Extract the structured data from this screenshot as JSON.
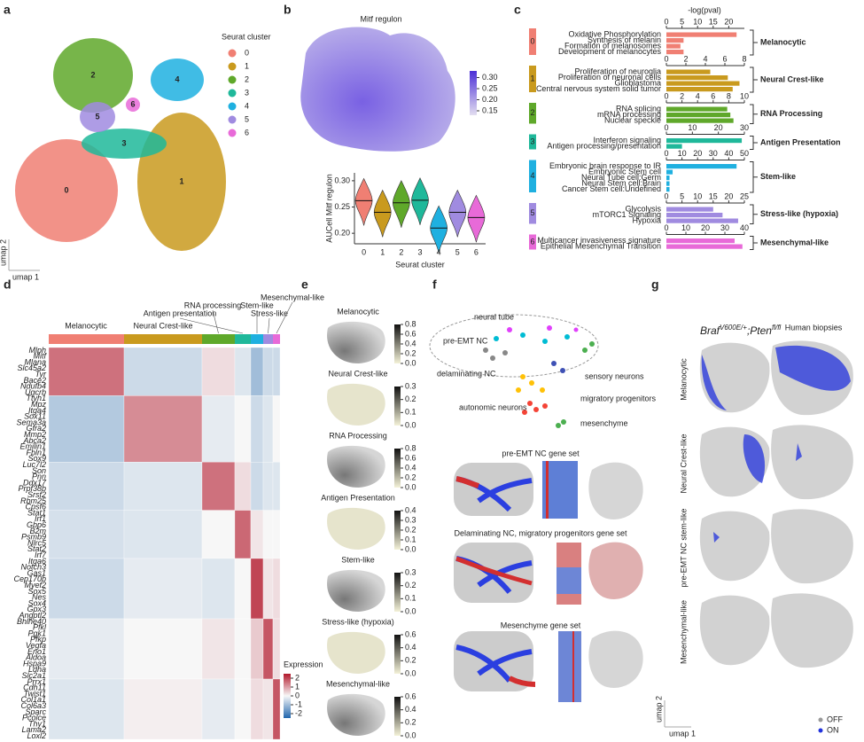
{
  "panel_labels": [
    "a",
    "b",
    "c",
    "d",
    "e",
    "f",
    "g"
  ],
  "panel_a": {
    "legend_title": "Seurat cluster",
    "clusters": [
      "0",
      "1",
      "2",
      "3",
      "4",
      "5",
      "6"
    ],
    "colors": [
      "#f07f73",
      "#c99a1e",
      "#5fa82a",
      "#1fb89a",
      "#1fb0e0",
      "#a08be0",
      "#e86ad8"
    ],
    "xlabel": "umap 1",
    "ylabel": "umap 2"
  },
  "panel_b": {
    "title": "Mitf regulon",
    "colorbar_lim": [
      0.13,
      0.33
    ],
    "colorbar_ticks": [
      0.15,
      {
        "value": 0.2,
        "label": "0.20"
      },
      0.25,
      {
        "value": 0.3,
        "label": "0.30"
      }
    ],
    "violin": {
      "type": "violin",
      "ylabel": "AUCell Mitf regulon",
      "xlabel": "Seurat cluster",
      "categories": [
        "0",
        "1",
        "2",
        "3",
        "4",
        "5",
        "6"
      ],
      "medians": [
        0.262,
        0.24,
        0.258,
        0.263,
        0.21,
        0.24,
        0.23
      ],
      "ylim": [
        0.18,
        0.315
      ],
      "yticks": [
        {
          "value": 0.2,
          "label": "0.20"
        },
        0.25,
        {
          "value": 0.3,
          "label": "0.30"
        }
      ]
    }
  },
  "panel_c": {
    "type": "bar",
    "axis_title": "-log(pval)",
    "groups": [
      {
        "cluster": "0",
        "label": "Melanocytic",
        "xlim": [
          0,
          25
        ],
        "xticks": [
          0,
          5,
          10,
          15,
          20
        ],
        "terms": [
          "Oxidative Phosphorylation",
          "Synthesis of melanin",
          "Formation of melanosomes",
          "Development of melanocytes"
        ],
        "values": [
          22.5,
          5.5,
          4.5,
          5.5
        ]
      },
      {
        "cluster": "1",
        "label": "Neural Crest-like",
        "xlim": [
          0,
          8
        ],
        "xticks": [
          0,
          2,
          4,
          6,
          8
        ],
        "terms": [
          "Proliferation of neuroglia",
          "Proliferation of neuronal cells",
          "Glioblastoma",
          "Central nervous system solid tumor"
        ],
        "values": [
          4.5,
          6.3,
          7.5,
          6.8
        ]
      },
      {
        "cluster": "2",
        "label": "RNA Processing",
        "xlim": [
          0,
          10
        ],
        "xticks": [
          0,
          2,
          4,
          6,
          8,
          10
        ],
        "terms": [
          "RNA splicing",
          "mRNA processing",
          "Nuclear speckle"
        ],
        "values": [
          7.8,
          8.2,
          8.6
        ]
      },
      {
        "cluster": "3",
        "label": "Antigen Presentation",
        "xlim": [
          0,
          30
        ],
        "xticks": [
          0,
          10,
          20,
          30
        ],
        "terms": [
          "Interferon signaling",
          "Antigen processing/presentation"
        ],
        "values": [
          29,
          6
        ]
      },
      {
        "cluster": "4",
        "label": "Stem-like",
        "xlim": [
          0,
          50
        ],
        "xticks": [
          0,
          10,
          20,
          30,
          40,
          50
        ],
        "terms": [
          "Embryonic brain response to IR",
          "Embryonic Stem cell",
          "Neural Tube cell:Germ",
          "Neural Stem cell:Brain",
          "Cancer Stem cell:Undefined"
        ],
        "values": [
          45,
          4,
          2,
          2,
          2
        ]
      },
      {
        "cluster": "5",
        "label": "Stress-like (hypoxia)",
        "xlim": [
          0,
          25
        ],
        "xticks": [
          0,
          5,
          10,
          15,
          20,
          25
        ],
        "terms": [
          "Glycolysis",
          "mTORC1 Signaling",
          "Hypoxia"
        ],
        "values": [
          15,
          18,
          23
        ]
      },
      {
        "cluster": "6",
        "label": "Mesenchymal-like",
        "xlim": [
          0,
          40
        ],
        "xticks": [
          0,
          10,
          20,
          30,
          40
        ],
        "terms": [
          "Multicancer invasiveness signature",
          "Epithelial Mesenchymal Transition"
        ],
        "values": [
          35,
          39
        ]
      }
    ]
  },
  "panel_d": {
    "type": "heatmap",
    "annotations": [
      "Melanocytic",
      "Neural Crest-like",
      "RNA processing",
      "Antigen presentation",
      "Stem-like",
      "Stress-like",
      "Mesenchymal-like"
    ],
    "gene_groups": [
      [
        "Mlph",
        "Mitf",
        "Mlana",
        "Slc45a2",
        "Tyr",
        "Bace2",
        "Ndufb4",
        "Uqcrb"
      ],
      [
        "Ttyh1",
        "Mpz",
        "Itga4",
        "Sox11",
        "Sema3a",
        "Gfra2",
        "Mmp2",
        "Abca2",
        "Emilin1",
        "Fbln1",
        "Sox9"
      ],
      [
        "Luc7l2",
        "Son",
        "Pnn",
        "Ddx17",
        "Prpf38b",
        "Srsf2",
        "Rbm25",
        "Cpsf6"
      ],
      [
        "Stat1",
        "Irf1",
        "Gbp6",
        "B2m",
        "Psmb9",
        "Nlrc5",
        "Stat2",
        "Irf7"
      ],
      [
        "Itga6",
        "Notch3",
        "Gas1",
        "Cep170b",
        "Myef2",
        "Sox5",
        "Nes",
        "Sox4",
        "Gpx3",
        "Angptl2"
      ],
      [
        "Bhlhe40",
        "Pfkl",
        "Pgk1",
        "Pfkp",
        "Vegfa",
        "Eno1",
        "Aldoa",
        "Hspa9",
        "Ldha",
        "Slc2a1"
      ],
      [
        "Prrx1",
        "Cdh11",
        "Twist1",
        "Col1a1",
        "Col6a3",
        "Sparc",
        "Pcolce",
        "Thy1",
        "Lama2",
        "Loxl2"
      ]
    ],
    "block_values": [
      [
        1.5,
        -0.5,
        0.3,
        -0.3,
        -1,
        -0.5,
        -0.5
      ],
      [
        -0.8,
        1.2,
        -0.2,
        0,
        -0.5,
        -0.3,
        0
      ],
      [
        -0.5,
        -0.3,
        1.5,
        0.3,
        -0.5,
        -0.3,
        -0.3
      ],
      [
        -0.4,
        -0.3,
        0,
        1.6,
        0.2,
        0,
        0
      ],
      [
        -0.5,
        -0.2,
        -0.3,
        0,
        2,
        0.2,
        0.3
      ],
      [
        -0.2,
        0,
        0.2,
        0,
        0.5,
        1.8,
        0.3
      ],
      [
        -0.3,
        0.1,
        -0.2,
        0,
        0.3,
        0.2,
        1.8
      ]
    ],
    "legend_title": "Expression",
    "clim": [
      -2.5,
      2.5
    ],
    "legend_ticks": [
      2,
      1,
      0,
      -1,
      -2
    ]
  },
  "panel_e": [
    {
      "title": "Melanocytic",
      "lim": [
        0,
        0.8
      ],
      "ticks": [
        {
          "value": 0,
          "label": "0.0"
        },
        0.2,
        0.4,
        0.6,
        0.8
      ]
    },
    {
      "title": "Neural Crest-like",
      "lim": [
        0,
        0.3
      ],
      "ticks": [
        {
          "value": 0,
          "label": "0.0"
        },
        0.1,
        0.2,
        0.3
      ]
    },
    {
      "title": "RNA Processing",
      "lim": [
        0,
        0.8
      ],
      "ticks": [
        {
          "value": 0,
          "label": "0.0"
        },
        0.2,
        0.4,
        0.6,
        0.8
      ]
    },
    {
      "title": "Antigen Presentation",
      "lim": [
        0,
        0.4
      ],
      "ticks": [
        {
          "value": 0,
          "label": "0.0"
        },
        0.1,
        0.2,
        0.3,
        0.4
      ]
    },
    {
      "title": "Stem-like",
      "lim": [
        0,
        0.3
      ],
      "ticks": [
        {
          "value": 0,
          "label": "0.0"
        },
        0.1,
        0.2,
        0.3
      ]
    },
    {
      "title": "Stress-like (hypoxia)",
      "lim": [
        0,
        0.6
      ],
      "ticks": [
        {
          "value": 0,
          "label": "0.0"
        },
        0.2,
        0.4,
        0.6
      ]
    },
    {
      "title": "Mesenchymal-like",
      "lim": [
        0,
        0.6
      ],
      "ticks": [
        {
          "value": 0,
          "label": "0.0"
        },
        0.2,
        0.4,
        0.6
      ]
    }
  ],
  "panel_f": {
    "labels": [
      "neural tube",
      "pre-EMT NC",
      "delaminating NC",
      "sensory neurons",
      "autonomic neurons",
      "migratory progenitors",
      "mesenchyme"
    ],
    "gene_sets": [
      "pre-EMT NC gene set",
      "Delaminating NC, migratory progenitors gene set",
      "Mesenchyme gene set"
    ]
  },
  "panel_g": {
    "header_mouse": {
      "gene1": "Braf",
      "sup1": "V600E/+",
      "gene2": ";Pten",
      "sup2": "fl/fl"
    },
    "header_human": "Human biopsies",
    "rows": [
      "Melanocytic",
      "Neural Crest-like",
      "pre-EMT NC stem-like",
      "Mesenchymal-like"
    ],
    "legend": [
      "OFF",
      "ON"
    ],
    "xlabel": "umap 1",
    "ylabel": "umap 2"
  }
}
